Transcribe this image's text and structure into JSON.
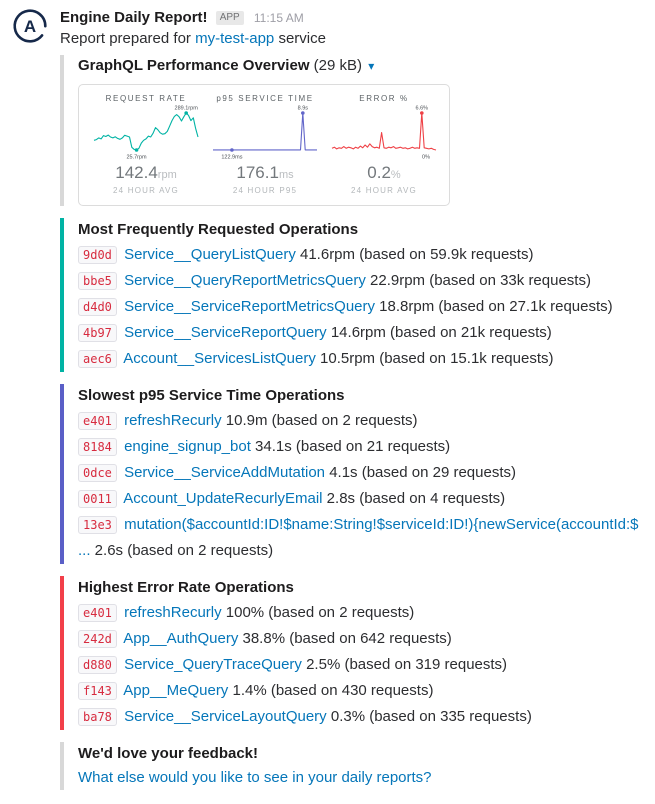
{
  "header": {
    "app_name": "Engine Daily Report!",
    "app_badge": "APP",
    "timestamp": "11:15 AM",
    "avatar_letter": "A",
    "intro": {
      "prefix": "Report prepared for ",
      "link": "my-test-app",
      "suffix": " service"
    }
  },
  "icons": {
    "caret_down": "▾",
    "avatar_logo": "apollo-a-circle"
  },
  "colors": {
    "link": "#0576b9",
    "code_red": "#d72b3f",
    "teal": "#00b3a4",
    "purple": "#5a5fc7",
    "red": "#f23f49",
    "gray_bar": "#d8d8d8",
    "avatar_navy": "#16294a"
  },
  "report": {
    "title": "GraphQL Performance Overview",
    "size": "(29 kB)"
  },
  "chart_data": {
    "type": "line",
    "title": "GraphQL Performance Overview",
    "legend": false,
    "grid": false,
    "charts": [
      {
        "title": "REQUEST RATE",
        "color": "#00b3a4",
        "max_label": "289.1rpm",
        "min_label": "25.7rpm",
        "show_min_dot": true,
        "stat_value": "142.4",
        "stat_unit": "rpm",
        "stat_caption": "24 HOUR AVG",
        "values": [
          95,
          100,
          112,
          105,
          128,
          122,
          132,
          118,
          112,
          120,
          108,
          102,
          112,
          130,
          125,
          118,
          45,
          30,
          25.7,
          38,
          75,
          95,
          105,
          125,
          118,
          145,
          185,
          170,
          148,
          138,
          142,
          158,
          195,
          235,
          265,
          278,
          262,
          232,
          262,
          289.1,
          272,
          235,
          255,
          180,
          118
        ]
      },
      {
        "title": "p95 SERVICE TIME",
        "color": "#6266c9",
        "max_label": "8.9s",
        "min_label": "122.9ms",
        "show_min_dot": true,
        "stat_value": "176.1",
        "stat_unit": "ms",
        "stat_caption": "24 HOUR P95",
        "values": [
          150,
          145,
          155,
          148,
          152,
          146,
          150,
          144,
          122.9,
          148,
          152,
          147,
          150,
          153,
          148,
          151,
          146,
          149,
          152,
          148,
          150,
          147,
          151,
          149,
          153,
          150,
          148,
          152,
          147,
          150,
          149,
          151,
          148,
          150,
          152,
          149,
          147,
          151,
          8900,
          150,
          148,
          151,
          149,
          150,
          148
        ]
      },
      {
        "title": "ERROR %",
        "color": "#ef4146",
        "max_label": "6.6%",
        "min_label": "0%",
        "show_min_dot": false,
        "stat_value": "0.2",
        "stat_unit": "%",
        "stat_caption": "24 HOUR AVG",
        "values": [
          0.3,
          0.5,
          0.2,
          0.4,
          0.3,
          0.6,
          0.3,
          0.5,
          0.4,
          0.2,
          0.5,
          0.3,
          0.7,
          0.4,
          0.9,
          0.5,
          1.1,
          0.6,
          0.4,
          0.5,
          0.3,
          3.1,
          0.4,
          0.3,
          0.5,
          0.4,
          0.6,
          0.3,
          0.4,
          0.5,
          0.3,
          0.4,
          0.2,
          0.3,
          0.5,
          0.3,
          0.4,
          0.3,
          6.6,
          0.4,
          0.3,
          0.2,
          0.3,
          0.1,
          0
        ]
      }
    ]
  },
  "sections": [
    {
      "title": "Most Frequently Requested Operations",
      "accent": "#00b3a4",
      "items": [
        {
          "id": "9d0d",
          "link": "Service__QueryListQuery",
          "stats": "41.6rpm (based on 59.9k requests)"
        },
        {
          "id": "bbe5",
          "link": "Service__QueryReportMetricsQuery",
          "stats": "22.9rpm (based on 33k requests)"
        },
        {
          "id": "d4d0",
          "link": "Service__ServiceReportMetricsQuery",
          "stats": "18.8rpm (based on 27.1k requests)"
        },
        {
          "id": "4b97",
          "link": "Service__ServiceReportQuery",
          "stats": "14.6rpm (based on 21k requests)"
        },
        {
          "id": "aec6",
          "link": "Account__ServicesListQuery",
          "stats": "10.5rpm (based on 15.1k requests)"
        }
      ]
    },
    {
      "title": "Slowest p95 Service Time Operations",
      "accent": "#5a5fc7",
      "items": [
        {
          "id": "e401",
          "link": "refreshRecurly",
          "stats": "10.9m (based on 2 requests)"
        },
        {
          "id": "8184",
          "link": "engine_signup_bot",
          "stats": "34.1s (based on 21 requests)"
        },
        {
          "id": "0dce",
          "link": "Service__ServiceAddMutation",
          "stats": "4.1s (based on 29 requests)"
        },
        {
          "id": "0011",
          "link": "Account_UpdateRecurlyEmail",
          "stats": "2.8s (based on 4 requests)"
        },
        {
          "id": "13e3",
          "link": "mutation($accountId:ID!$name:String!$serviceId:ID!){newService(accountId:$ ...",
          "stats": "2.6s (based on 2 requests)"
        }
      ]
    },
    {
      "title": "Highest Error Rate Operations",
      "accent": "#f23f49",
      "items": [
        {
          "id": "e401",
          "link": "refreshRecurly",
          "stats": "100% (based on 2 requests)"
        },
        {
          "id": "242d",
          "link": "App__AuthQuery",
          "stats": "38.8% (based on 642 requests)"
        },
        {
          "id": "d880",
          "link": "Service_QueryTraceQuery",
          "stats": "2.5% (based on 319 requests)"
        },
        {
          "id": "f143",
          "link": "App__MeQuery",
          "stats": "1.4% (based on 430 requests)"
        },
        {
          "id": "ba78",
          "link": "Service__ServiceLayoutQuery",
          "stats": "0.3% (based on 335 requests)"
        }
      ]
    }
  ],
  "feedback": {
    "title": "We'd love your feedback!",
    "link": "What else would you like to see in your daily reports?"
  }
}
